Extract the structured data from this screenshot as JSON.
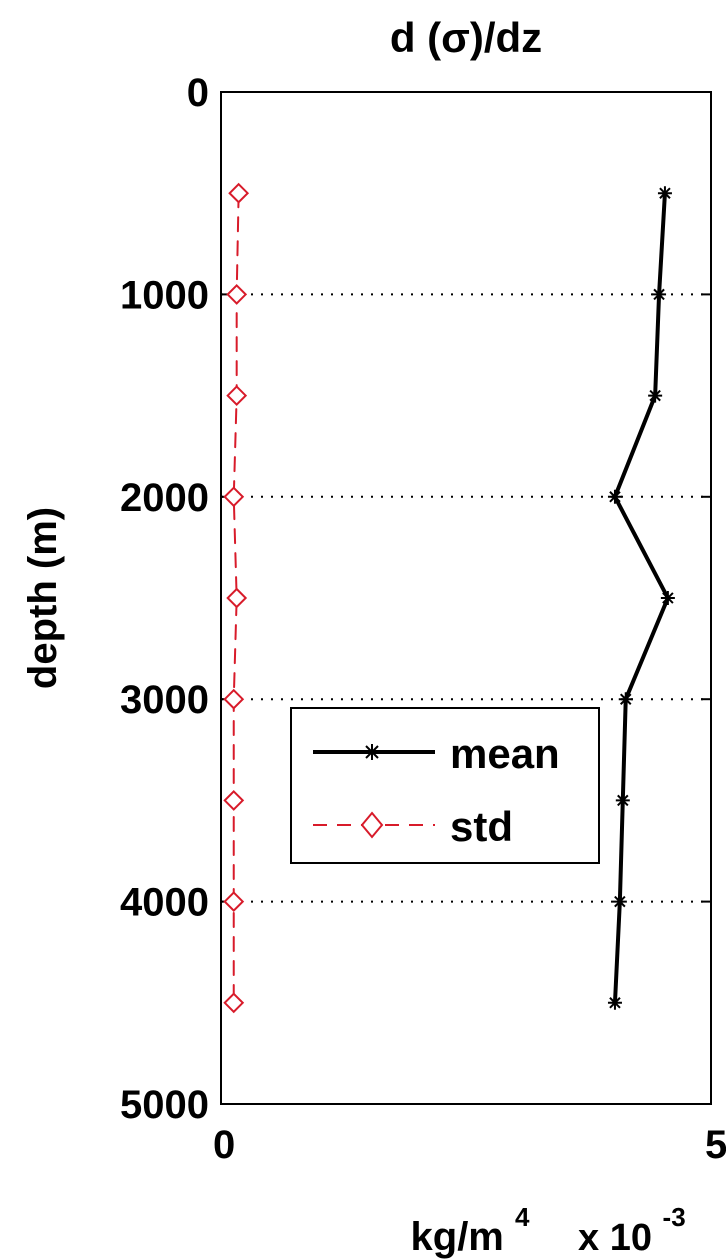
{
  "chart_data": {
    "type": "line",
    "title": "d (σ)/dz",
    "xlabel": "kg/m",
    "xlabel_superscript": "4",
    "x_multiplier_text": "x 10",
    "x_multiplier_exponent": "-3",
    "ylabel": "depth (m)",
    "xlim": [
      0,
      0.005
    ],
    "ylim": [
      0,
      5000
    ],
    "y_reversed": true,
    "x_tick_labels": [
      "0",
      "5"
    ],
    "y_ticks": [
      0,
      1000,
      2000,
      3000,
      4000,
      5000
    ],
    "y_tick_labels": [
      "0",
      "1000",
      "2000",
      "3000",
      "4000",
      "5000"
    ],
    "grid": "horizontal dotted at y ticks",
    "legend_position": "center-left",
    "series": [
      {
        "name": "mean",
        "color": "#000000",
        "line_style": "solid",
        "marker": "star",
        "points": [
          {
            "x": 0.00453,
            "y": 500
          },
          {
            "x": 0.00447,
            "y": 1000
          },
          {
            "x": 0.00443,
            "y": 1500
          },
          {
            "x": 0.00402,
            "y": 2000
          },
          {
            "x": 0.00456,
            "y": 2500
          },
          {
            "x": 0.00413,
            "y": 3000
          },
          {
            "x": 0.0041,
            "y": 3500
          },
          {
            "x": 0.00407,
            "y": 4000
          },
          {
            "x": 0.00402,
            "y": 4500
          }
        ]
      },
      {
        "name": "std",
        "color": "#d81b2a",
        "line_style": "dashed",
        "marker": "diamond",
        "points": [
          {
            "x": 0.00018,
            "y": 500
          },
          {
            "x": 0.00016,
            "y": 1000
          },
          {
            "x": 0.00016,
            "y": 1500
          },
          {
            "x": 0.00013,
            "y": 2000
          },
          {
            "x": 0.00016,
            "y": 2500
          },
          {
            "x": 0.00013,
            "y": 3000
          },
          {
            "x": 0.00013,
            "y": 3500
          },
          {
            "x": 0.00013,
            "y": 4000
          },
          {
            "x": 0.00013,
            "y": 4500
          }
        ]
      }
    ]
  }
}
